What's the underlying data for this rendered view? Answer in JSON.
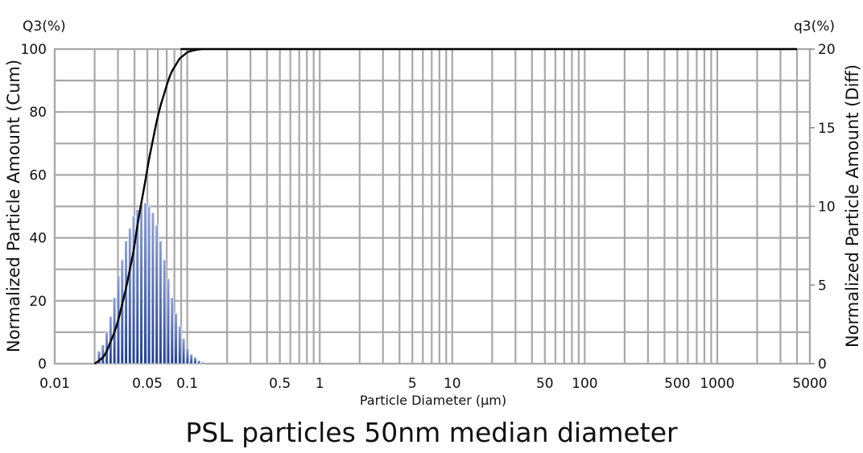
{
  "chart_data": {
    "type": "bar",
    "xlabel": "Particle Diameter (μm)",
    "x_scale": "log",
    "xlim": [
      0.01,
      5000
    ],
    "x_tick_labels": [
      "0.01",
      "0.05",
      "0.1",
      "0.5",
      "1",
      "5",
      "10",
      "50",
      "100",
      "500",
      "1000",
      "5000"
    ],
    "left_axis": {
      "unit_label": "Q3(%)",
      "label": "Normalized Particle Amount (Cum)",
      "ylim": [
        0,
        100
      ],
      "ticks": [
        "0",
        "20",
        "40",
        "60",
        "80",
        "100"
      ]
    },
    "right_axis": {
      "unit_label": "q3(%)",
      "label": "Normalized Particle Amount (Diff)",
      "ylim": [
        0,
        20
      ],
      "ticks": [
        "0",
        "5",
        "10",
        "15",
        "20"
      ]
    },
    "grid": true,
    "series": [
      {
        "type": "bar",
        "axis": "right",
        "color": "#2a4a9e",
        "x": [
          0.0216,
          0.0231,
          0.0247,
          0.0264,
          0.0282,
          0.0302,
          0.0323,
          0.0345,
          0.0369,
          0.0394,
          0.0421,
          0.045,
          0.0482,
          0.0515,
          0.055,
          0.0588,
          0.0629,
          0.0672,
          0.0719,
          0.0768,
          0.0821,
          0.0878,
          0.0939,
          0.1003,
          0.1073,
          0.1147,
          0.1226,
          0.131
        ],
        "values": [
          0.8,
          1.2,
          2.0,
          3.0,
          4.2,
          5.6,
          6.6,
          7.8,
          8.6,
          9.4,
          9.8,
          10.0,
          10.2,
          10.0,
          9.6,
          8.8,
          7.8,
          6.6,
          5.4,
          4.2,
          3.2,
          2.4,
          1.6,
          1.0,
          0.6,
          0.4,
          0.2,
          0.1
        ]
      },
      {
        "type": "line",
        "axis": "left",
        "color": "#000000",
        "x": [
          0.02,
          0.0216,
          0.0231,
          0.0247,
          0.0264,
          0.0282,
          0.0302,
          0.0323,
          0.0345,
          0.0369,
          0.0394,
          0.0421,
          0.045,
          0.0482,
          0.0515,
          0.055,
          0.0588,
          0.0629,
          0.0672,
          0.0719,
          0.0768,
          0.0821,
          0.0878,
          0.0939,
          0.1003,
          0.1073,
          0.1147,
          0.1226,
          0.131,
          0.16,
          0.2,
          4000
        ],
        "values": [
          0,
          1,
          2,
          4,
          7,
          10,
          14,
          19,
          24,
          30,
          36,
          44,
          51,
          58,
          65,
          71,
          77,
          82,
          86,
          90,
          93,
          95,
          97,
          98,
          99,
          99.4,
          99.7,
          99.9,
          100,
          100,
          100,
          100
        ]
      }
    ]
  },
  "caption": "PSL particles 50nm median diameter"
}
